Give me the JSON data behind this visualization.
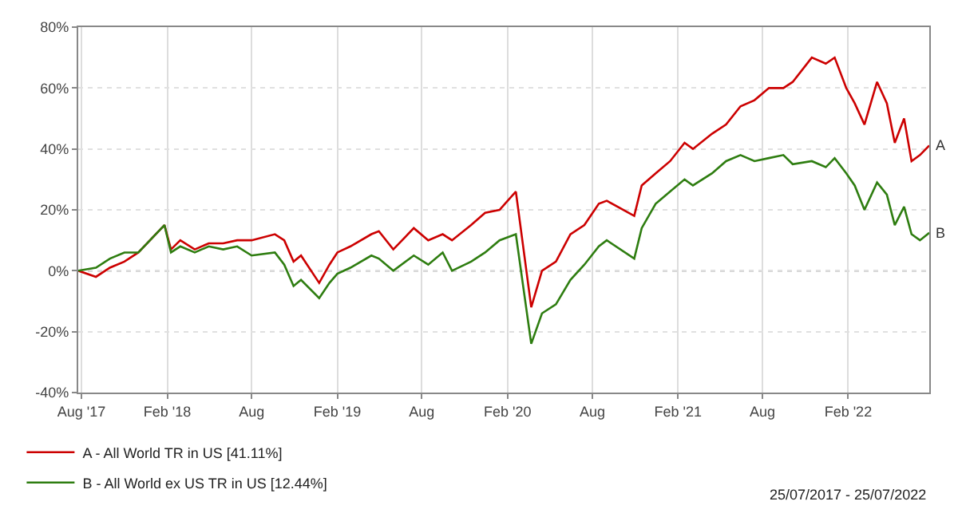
{
  "chart_data": {
    "type": "line",
    "x": [
      "2017-07-25",
      "2017-09-01",
      "2017-10-01",
      "2017-11-01",
      "2017-12-01",
      "2018-01-26",
      "2018-02-09",
      "2018-03-01",
      "2018-04-01",
      "2018-05-01",
      "2018-06-01",
      "2018-07-01",
      "2018-08-01",
      "2018-09-20",
      "2018-10-10",
      "2018-10-30",
      "2018-11-15",
      "2018-12-24",
      "2019-01-15",
      "2019-02-01",
      "2019-03-01",
      "2019-04-15",
      "2019-05-01",
      "2019-06-01",
      "2019-07-15",
      "2019-08-15",
      "2019-09-15",
      "2019-10-05",
      "2019-11-15",
      "2019-12-15",
      "2020-01-15",
      "2020-02-19",
      "2020-03-23",
      "2020-04-15",
      "2020-05-15",
      "2020-06-15",
      "2020-07-15",
      "2020-08-15",
      "2020-09-01",
      "2020-10-30",
      "2020-11-15",
      "2020-12-15",
      "2021-01-15",
      "2021-02-15",
      "2021-03-05",
      "2021-04-15",
      "2021-05-15",
      "2021-06-15",
      "2021-07-15",
      "2021-08-15",
      "2021-09-15",
      "2021-10-05",
      "2021-11-15",
      "2021-12-15",
      "2022-01-03",
      "2022-01-28",
      "2022-02-15",
      "2022-03-08",
      "2022-04-04",
      "2022-04-25",
      "2022-05-12",
      "2022-06-01",
      "2022-06-17",
      "2022-07-05",
      "2022-07-25"
    ],
    "series": [
      {
        "name": "A - All World TR in US [41.11%]",
        "color": "#cc0000",
        "values": [
          0,
          -2,
          1,
          3,
          6,
          15,
          7,
          10,
          7,
          9,
          9,
          10,
          10,
          12,
          10,
          3,
          5,
          -4,
          2,
          6,
          8,
          12,
          13,
          7,
          14,
          10,
          12,
          10,
          15,
          19,
          20,
          26,
          -12,
          0,
          3,
          12,
          15,
          22,
          23,
          18,
          28,
          32,
          36,
          42,
          40,
          45,
          48,
          54,
          56,
          60,
          60,
          62,
          70,
          68,
          70,
          60,
          55,
          48,
          62,
          55,
          42,
          50,
          36,
          38,
          41.11
        ]
      },
      {
        "name": "B - All World ex US TR in US [12.44%]",
        "color": "#2e7d10",
        "values": [
          0,
          1,
          4,
          6,
          6,
          15,
          6,
          8,
          6,
          8,
          7,
          8,
          5,
          6,
          2,
          -5,
          -3,
          -9,
          -4,
          -1,
          1,
          5,
          4,
          0,
          5,
          2,
          6,
          0,
          3,
          6,
          10,
          12,
          -24,
          -14,
          -11,
          -3,
          2,
          8,
          10,
          4,
          14,
          22,
          26,
          30,
          28,
          32,
          36,
          38,
          36,
          37,
          38,
          35,
          36,
          34,
          37,
          32,
          28,
          20,
          29,
          25,
          15,
          21,
          12,
          10,
          12.44
        ]
      }
    ],
    "xlim": [
      "2017-07-25",
      "2022-07-25"
    ],
    "xticks": [
      {
        "value": "2017-08-01",
        "label": "Aug '17"
      },
      {
        "value": "2018-02-01",
        "label": "Feb '18"
      },
      {
        "value": "2018-08-01",
        "label": "Aug"
      },
      {
        "value": "2019-02-01",
        "label": "Feb '19"
      },
      {
        "value": "2019-08-01",
        "label": "Aug"
      },
      {
        "value": "2020-02-01",
        "label": "Feb '20"
      },
      {
        "value": "2020-08-01",
        "label": "Aug"
      },
      {
        "value": "2021-02-01",
        "label": "Feb '21"
      },
      {
        "value": "2021-08-01",
        "label": "Aug"
      },
      {
        "value": "2022-02-01",
        "label": "Feb '22"
      }
    ],
    "ylim": [
      -40,
      80
    ],
    "yticks": [
      {
        "value": -40,
        "label": "-40%"
      },
      {
        "value": -20,
        "label": "-20%"
      },
      {
        "value": 0,
        "label": "0%"
      },
      {
        "value": 20,
        "label": "20%"
      },
      {
        "value": 40,
        "label": "40%"
      },
      {
        "value": 60,
        "label": "60%"
      },
      {
        "value": 80,
        "label": "80%"
      }
    ],
    "grid": true,
    "legend": "bottom left",
    "marker": "none",
    "line_style": "solid",
    "ref_lines": [
      {
        "axis": "y",
        "value": 0,
        "label": null,
        "color": "#555555",
        "line_style": "dotted"
      }
    ],
    "annotations": [
      {
        "text": "A",
        "x": "2022-07-25",
        "y": 41.11
      },
      {
        "text": "B",
        "x": "2022-07-25",
        "y": 12.44
      },
      "25/07/2017 - 25/07/2022"
    ]
  }
}
